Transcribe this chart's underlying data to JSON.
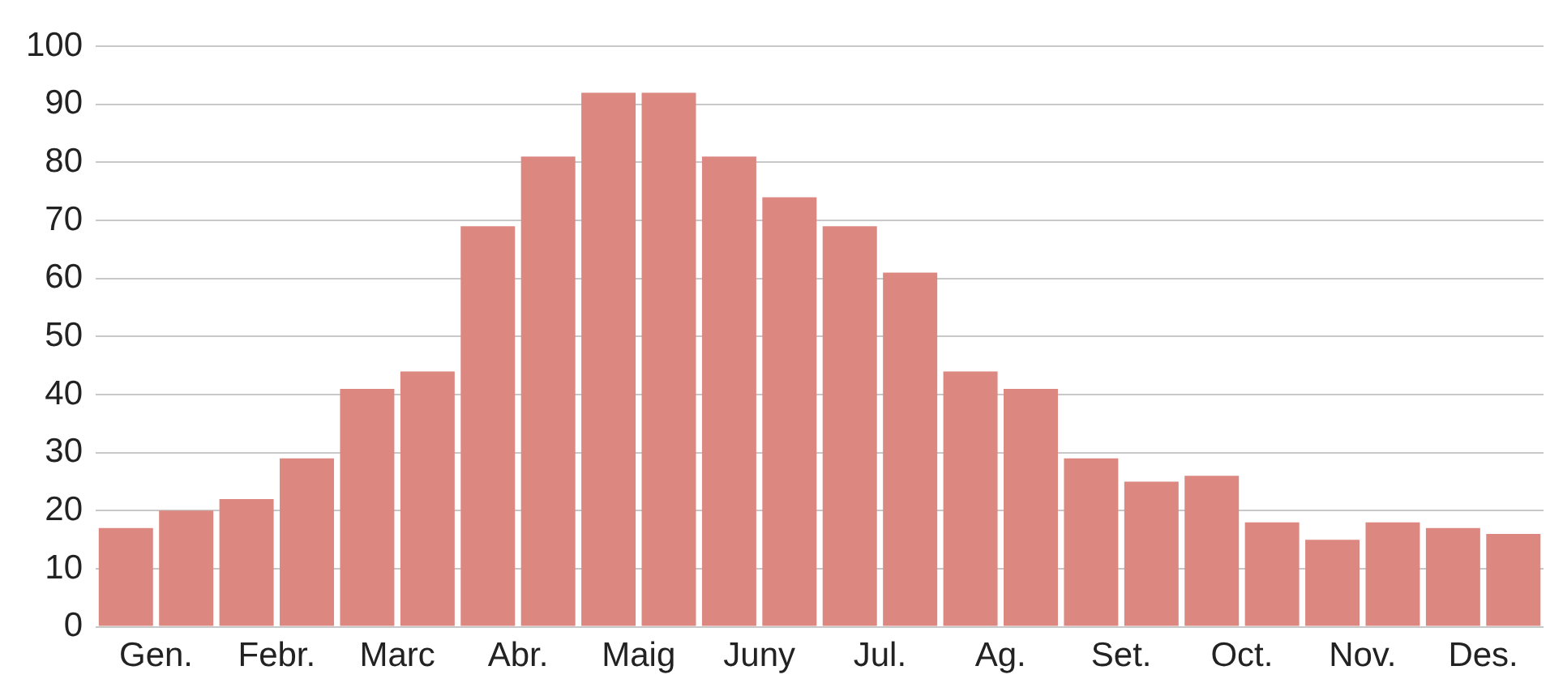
{
  "chart_data": {
    "type": "bar",
    "categories": [
      "Gen.",
      "Febr.",
      "Marc",
      "Abr.",
      "Maig",
      "Juny",
      "Jul.",
      "Ag.",
      "Set.",
      "Oct.",
      "Nov.",
      "Des."
    ],
    "series": [
      {
        "color": "#dc8880",
        "values": [
          17,
          22,
          41,
          69,
          92,
          81,
          69,
          44,
          29,
          26,
          15,
          17
        ]
      },
      {
        "color": "#dc8880",
        "values": [
          20,
          29,
          44,
          81,
          92,
          74,
          61,
          41,
          25,
          18,
          18,
          16
        ]
      }
    ],
    "ylim": [
      0,
      100
    ],
    "yticks": [
      0,
      10,
      20,
      30,
      40,
      50,
      60,
      70,
      80,
      90,
      100
    ],
    "grid": "y"
  }
}
